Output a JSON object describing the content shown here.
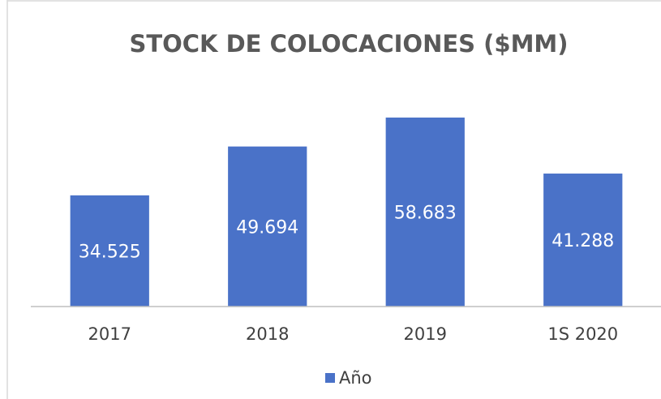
{
  "chart_data": {
    "type": "bar",
    "title": "STOCK DE COLOCACIONES ($MM)",
    "categories": [
      "2017",
      "2018",
      "2019",
      "1S 2020"
    ],
    "values": [
      34525,
      49694,
      58683,
      41288
    ],
    "value_labels": [
      "34.525",
      "49.694",
      "58.683",
      "41.288"
    ],
    "series_name": "Año",
    "color": "#4a72c8",
    "ylim": [
      0,
      70000
    ]
  }
}
